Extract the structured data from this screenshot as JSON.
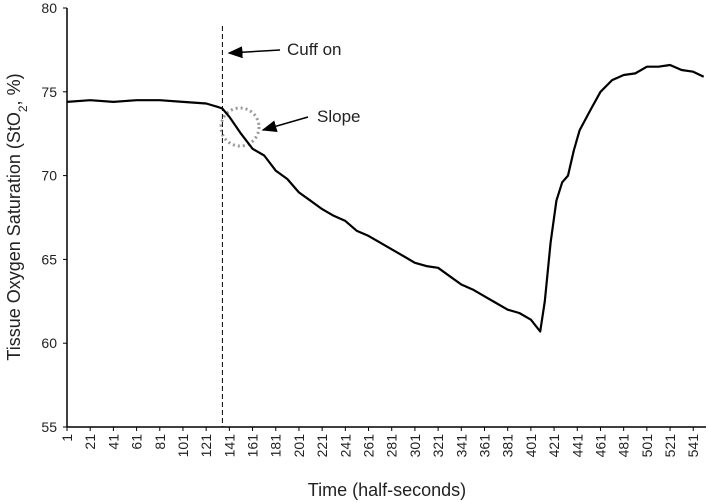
{
  "chart_data": {
    "type": "line",
    "x_label": "Time (half-seconds)",
    "y_label": [
      "Tissue Oxygen Saturation (StO",
      "2",
      ", %)"
    ],
    "x": [
      1,
      21,
      41,
      61,
      81,
      101,
      121,
      131,
      135,
      141,
      151,
      161,
      171,
      181,
      191,
      201,
      211,
      221,
      231,
      241,
      251,
      261,
      271,
      281,
      291,
      301,
      311,
      321,
      331,
      341,
      351,
      361,
      371,
      381,
      391,
      401,
      409,
      413,
      418,
      423,
      428,
      433,
      438,
      443,
      453,
      461,
      471,
      481,
      491,
      501,
      511,
      521,
      531,
      541,
      550
    ],
    "series": [
      {
        "color": "#000000",
        "values": [
          74.4,
          74.5,
          74.4,
          74.5,
          74.5,
          74.4,
          74.3,
          74.1,
          74.0,
          73.5,
          72.5,
          71.6,
          71.2,
          70.3,
          69.8,
          69.0,
          68.5,
          68.0,
          67.6,
          67.3,
          66.7,
          66.4,
          66.0,
          65.6,
          65.2,
          64.8,
          64.6,
          64.5,
          64.0,
          63.5,
          63.2,
          62.8,
          62.4,
          62.0,
          61.8,
          61.4,
          60.7,
          62.5,
          66.0,
          68.5,
          69.6,
          70.0,
          71.5,
          72.7,
          74.0,
          75.0,
          75.7,
          76.0,
          76.1,
          76.5,
          76.5,
          76.6,
          76.3,
          76.2,
          75.9
        ]
      }
    ],
    "marker_x": 135,
    "annotations": [
      {
        "text": "Cuff on"
      },
      {
        "text": "Slope"
      }
    ],
    "xlim": [
      1,
      552
    ],
    "xticks": [
      1,
      21,
      41,
      61,
      81,
      101,
      121,
      141,
      161,
      181,
      201,
      221,
      241,
      261,
      281,
      301,
      321,
      341,
      361,
      381,
      401,
      421,
      441,
      461,
      481,
      501,
      521,
      541
    ],
    "ylim": [
      55,
      80
    ],
    "yticks": [
      55,
      60,
      65,
      70,
      75,
      80
    ]
  }
}
